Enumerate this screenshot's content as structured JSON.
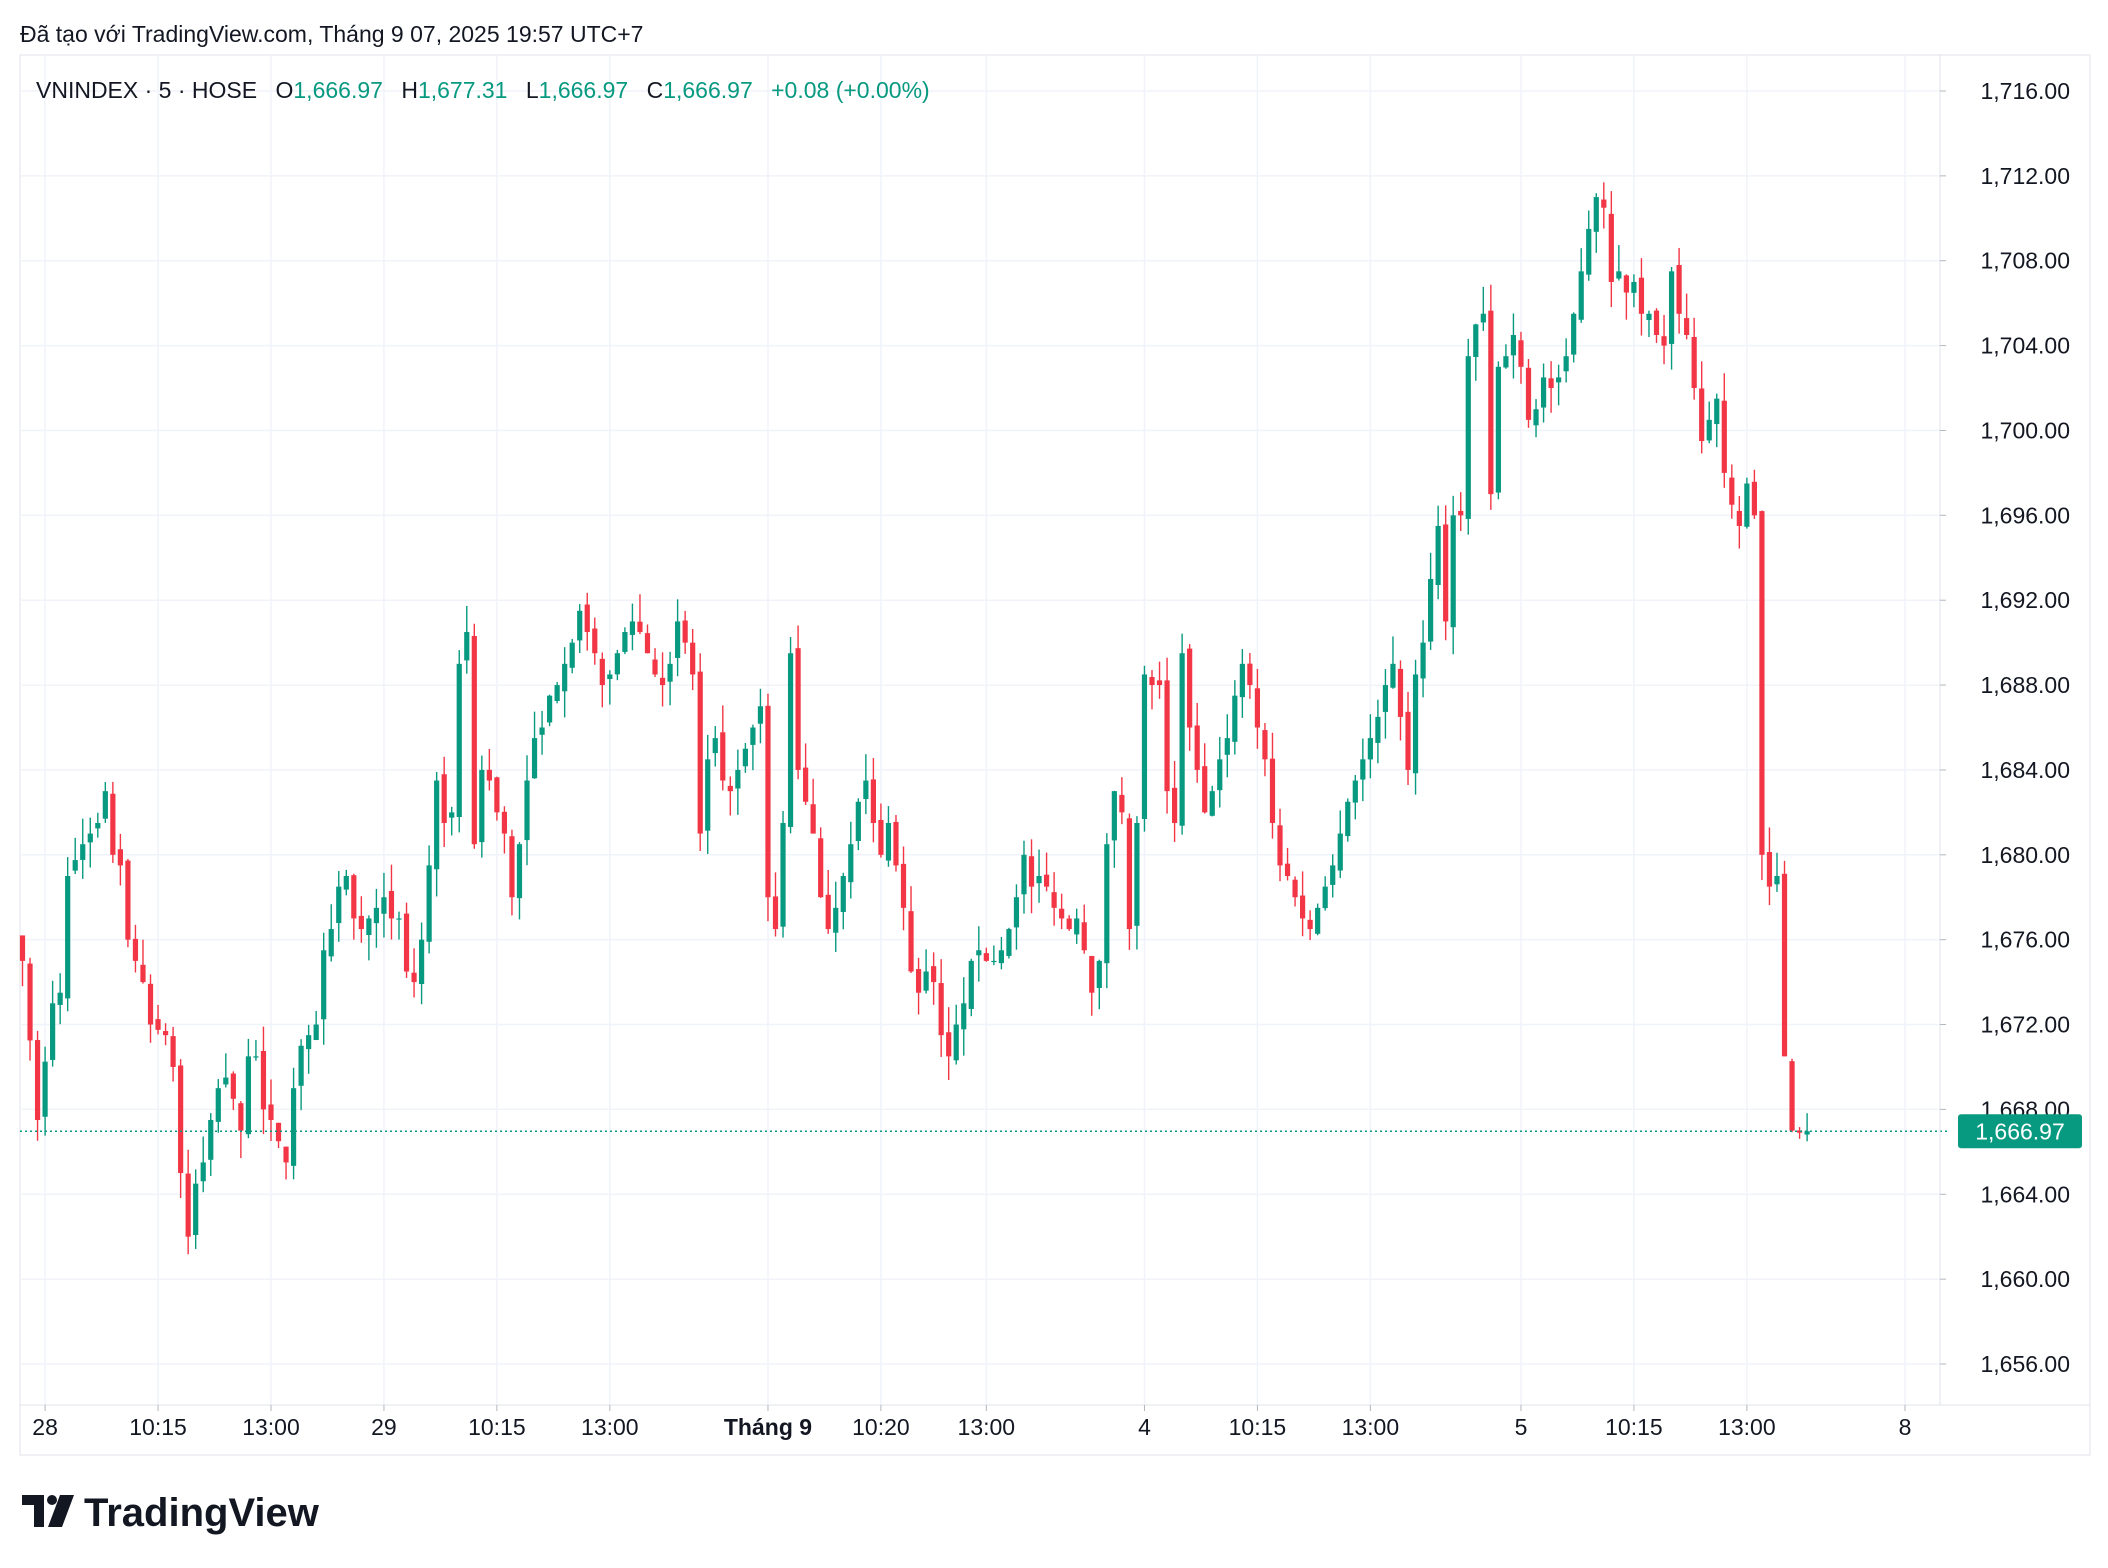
{
  "header": {
    "created_with": "Đã tạo với TradingView.com, Tháng 9 07, 2025 19:57 UTC+7"
  },
  "legend": {
    "symbol": "VNINDEX · 5 · HOSE",
    "o_label": "O",
    "o_value": "1,666.97",
    "h_label": "H",
    "h_value": "1,677.31",
    "l_label": "L",
    "l_value": "1,666.97",
    "c_label": "C",
    "c_value": "1,666.97",
    "change": "+0.08 (+0.00%)"
  },
  "branding": {
    "logo_text": "TradingView"
  },
  "colors": {
    "up": "#089981",
    "down": "#f23645",
    "grid": "#f0f3fa",
    "text": "#131722",
    "label_bg": "#089981"
  },
  "chart_data": {
    "type": "candlestick",
    "title": "VNINDEX · 5 · HOSE",
    "ylim": [
      1654,
      1718
    ],
    "y_ticks": [
      1716,
      1712,
      1708,
      1704,
      1700,
      1696,
      1692,
      1688,
      1684,
      1680,
      1676,
      1672,
      1668,
      1664,
      1660,
      1656
    ],
    "y_tick_labels": [
      "1,716.00",
      "1,712.00",
      "1,708.00",
      "1,704.00",
      "1,700.00",
      "1,696.00",
      "1,692.00",
      "1,688.00",
      "1,684.00",
      "1,680.00",
      "1,676.00",
      "1,672.00",
      "1,668.00",
      "1,664.00",
      "1,660.00",
      "1,656.00"
    ],
    "x_labels": [
      {
        "label": "28",
        "bar": 3,
        "bold": false
      },
      {
        "label": "10:15",
        "bar": 18,
        "bold": false
      },
      {
        "label": "13:00",
        "bar": 33,
        "bold": false
      },
      {
        "label": "29",
        "bar": 48,
        "bold": false
      },
      {
        "label": "10:15",
        "bar": 63,
        "bold": false
      },
      {
        "label": "13:00",
        "bar": 78,
        "bold": false
      },
      {
        "label": "Tháng 9",
        "bar": 99,
        "bold": true
      },
      {
        "label": "10:20",
        "bar": 114,
        "bold": false
      },
      {
        "label": "13:00",
        "bar": 128,
        "bold": false
      },
      {
        "label": "4",
        "bar": 149,
        "bold": false
      },
      {
        "label": "10:15",
        "bar": 164,
        "bold": false
      },
      {
        "label": "13:00",
        "bar": 179,
        "bold": false
      },
      {
        "label": "5",
        "bar": 199,
        "bold": false
      },
      {
        "label": "10:15",
        "bar": 214,
        "bold": false
      },
      {
        "label": "13:00",
        "bar": 229,
        "bold": false
      },
      {
        "label": "8",
        "bar": 250,
        "bold": false
      }
    ],
    "last_price": 1666.97,
    "last_price_label": "1,666.97",
    "anchors": [
      [
        0,
        1675.0
      ],
      [
        2,
        1667.5
      ],
      [
        4,
        1673.0
      ],
      [
        5,
        1673.5
      ],
      [
        6,
        1679.0
      ],
      [
        8,
        1680.5
      ],
      [
        10,
        1681.5
      ],
      [
        11,
        1683.0
      ],
      [
        12,
        1680.0
      ],
      [
        13,
        1679.5
      ],
      [
        14,
        1676.0
      ],
      [
        15,
        1675.0
      ],
      [
        16,
        1674.0
      ],
      [
        17,
        1672.0
      ],
      [
        19,
        1671.5
      ],
      [
        20,
        1670.0
      ],
      [
        21,
        1665.0
      ],
      [
        22,
        1662.0
      ],
      [
        23,
        1664.5
      ],
      [
        24,
        1665.5
      ],
      [
        25,
        1667.5
      ],
      [
        26,
        1669.0
      ],
      [
        27,
        1669.5
      ],
      [
        28,
        1668.5
      ],
      [
        29,
        1667.0
      ],
      [
        30,
        1670.5
      ],
      [
        31,
        1670.5
      ],
      [
        32,
        1668.0
      ],
      [
        33,
        1667.5
      ],
      [
        34,
        1666.5
      ],
      [
        35,
        1665.5
      ],
      [
        36,
        1669.0
      ],
      [
        37,
        1671.0
      ],
      [
        38,
        1671.5
      ],
      [
        39,
        1672.0
      ],
      [
        40,
        1675.5
      ],
      [
        41,
        1676.5
      ],
      [
        42,
        1678.5
      ],
      [
        43,
        1679.0
      ],
      [
        44,
        1677.0
      ],
      [
        45,
        1676.5
      ],
      [
        46,
        1677.0
      ],
      [
        47,
        1677.5
      ],
      [
        48,
        1678.0
      ],
      [
        49,
        1677.0
      ],
      [
        50,
        1677.0
      ],
      [
        51,
        1674.5
      ],
      [
        52,
        1674.0
      ],
      [
        53,
        1676.0
      ],
      [
        54,
        1679.5
      ],
      [
        55,
        1683.5
      ],
      [
        56,
        1681.5
      ],
      [
        57,
        1682.0
      ],
      [
        58,
        1689.0
      ],
      [
        59,
        1690.5
      ],
      [
        60,
        1680.5
      ],
      [
        61,
        1684.0
      ],
      [
        62,
        1683.5
      ],
      [
        63,
        1682.0
      ],
      [
        64,
        1681.0
      ],
      [
        65,
        1678.0
      ],
      [
        66,
        1680.5
      ],
      [
        67,
        1683.5
      ],
      [
        68,
        1685.5
      ],
      [
        69,
        1686.0
      ],
      [
        70,
        1687.5
      ],
      [
        71,
        1688.0
      ],
      [
        72,
        1689.0
      ],
      [
        73,
        1690.0
      ],
      [
        74,
        1691.5
      ],
      [
        75,
        1690.5
      ],
      [
        76,
        1689.5
      ],
      [
        77,
        1688.0
      ],
      [
        78,
        1688.5
      ],
      [
        79,
        1689.5
      ],
      [
        80,
        1690.5
      ],
      [
        81,
        1691.0
      ],
      [
        82,
        1690.5
      ],
      [
        83,
        1689.5
      ],
      [
        84,
        1688.5
      ],
      [
        85,
        1688.0
      ],
      [
        86,
        1689.0
      ],
      [
        87,
        1691.0
      ],
      [
        88,
        1690.0
      ],
      [
        89,
        1688.5
      ],
      [
        90,
        1681.0
      ],
      [
        91,
        1684.5
      ],
      [
        92,
        1685.5
      ],
      [
        93,
        1683.5
      ],
      [
        94,
        1683.0
      ],
      [
        95,
        1684.0
      ],
      [
        96,
        1685.0
      ],
      [
        97,
        1686.0
      ],
      [
        98,
        1687.0
      ],
      [
        99,
        1678.0
      ],
      [
        100,
        1676.5
      ],
      [
        101,
        1681.5
      ],
      [
        102,
        1689.5
      ],
      [
        103,
        1684.0
      ],
      [
        104,
        1682.5
      ],
      [
        105,
        1681.0
      ],
      [
        106,
        1678.0
      ],
      [
        107,
        1676.5
      ],
      [
        108,
        1677.5
      ],
      [
        109,
        1679.0
      ],
      [
        110,
        1680.5
      ],
      [
        111,
        1682.5
      ],
      [
        112,
        1683.5
      ],
      [
        113,
        1681.5
      ],
      [
        114,
        1680.0
      ],
      [
        115,
        1681.5
      ],
      [
        116,
        1679.5
      ],
      [
        117,
        1677.5
      ],
      [
        118,
        1674.5
      ],
      [
        119,
        1673.5
      ],
      [
        120,
        1674.5
      ],
      [
        121,
        1674.0
      ],
      [
        122,
        1671.5
      ],
      [
        123,
        1670.5
      ],
      [
        124,
        1672.0
      ],
      [
        125,
        1673.0
      ],
      [
        126,
        1675.0
      ],
      [
        127,
        1675.5
      ],
      [
        128,
        1675.0
      ],
      [
        129,
        1675.0
      ],
      [
        130,
        1675.5
      ],
      [
        131,
        1676.5
      ],
      [
        132,
        1678.0
      ],
      [
        133,
        1680.0
      ],
      [
        134,
        1678.5
      ],
      [
        135,
        1679.0
      ],
      [
        136,
        1678.5
      ],
      [
        137,
        1677.5
      ],
      [
        138,
        1677.0
      ],
      [
        139,
        1676.5
      ],
      [
        140,
        1677.0
      ],
      [
        141,
        1675.5
      ],
      [
        142,
        1673.5
      ],
      [
        143,
        1675.0
      ],
      [
        144,
        1680.5
      ],
      [
        145,
        1683.0
      ],
      [
        146,
        1682.0
      ],
      [
        147,
        1676.5
      ],
      [
        148,
        1681.5
      ],
      [
        149,
        1688.5
      ],
      [
        150,
        1688.0
      ],
      [
        151,
        1688.0
      ],
      [
        152,
        1683.0
      ],
      [
        153,
        1681.5
      ],
      [
        154,
        1689.5
      ],
      [
        155,
        1686.0
      ],
      [
        156,
        1684.0
      ],
      [
        157,
        1682.0
      ],
      [
        158,
        1683.0
      ],
      [
        159,
        1684.5
      ],
      [
        160,
        1685.5
      ],
      [
        161,
        1687.5
      ],
      [
        162,
        1689.0
      ],
      [
        163,
        1688.0
      ],
      [
        164,
        1686.0
      ],
      [
        165,
        1684.5
      ],
      [
        166,
        1681.5
      ],
      [
        167,
        1679.5
      ],
      [
        168,
        1679.0
      ],
      [
        169,
        1678.0
      ],
      [
        170,
        1677.0
      ],
      [
        171,
        1676.5
      ],
      [
        172,
        1677.5
      ],
      [
        173,
        1678.5
      ],
      [
        174,
        1679.5
      ],
      [
        175,
        1681.0
      ],
      [
        176,
        1682.5
      ],
      [
        177,
        1683.5
      ],
      [
        178,
        1684.5
      ],
      [
        179,
        1685.5
      ],
      [
        180,
        1686.5
      ],
      [
        181,
        1688.0
      ],
      [
        182,
        1689.0
      ],
      [
        183,
        1686.5
      ],
      [
        184,
        1684.0
      ],
      [
        185,
        1688.5
      ],
      [
        186,
        1690.0
      ],
      [
        187,
        1693.0
      ],
      [
        188,
        1695.5
      ],
      [
        189,
        1691.0
      ],
      [
        190,
        1696.0
      ],
      [
        191,
        1696.0
      ],
      [
        192,
        1703.5
      ],
      [
        193,
        1705.0
      ],
      [
        194,
        1705.5
      ],
      [
        195,
        1697.0
      ],
      [
        196,
        1703.0
      ],
      [
        197,
        1703.5
      ],
      [
        198,
        1704.5
      ],
      [
        199,
        1703.0
      ],
      [
        200,
        1700.5
      ],
      [
        201,
        1701.0
      ],
      [
        202,
        1702.5
      ],
      [
        203,
        1702.0
      ],
      [
        204,
        1702.5
      ],
      [
        205,
        1703.5
      ],
      [
        206,
        1705.5
      ],
      [
        207,
        1707.5
      ],
      [
        208,
        1709.5
      ],
      [
        209,
        1711.0
      ],
      [
        210,
        1710.5
      ],
      [
        211,
        1707.0
      ],
      [
        212,
        1707.5
      ],
      [
        213,
        1706.5
      ],
      [
        214,
        1707.0
      ],
      [
        215,
        1705.5
      ],
      [
        216,
        1705.5
      ],
      [
        217,
        1704.5
      ],
      [
        218,
        1704.0
      ],
      [
        219,
        1707.5
      ],
      [
        220,
        1705.5
      ],
      [
        221,
        1704.5
      ],
      [
        222,
        1702.0
      ],
      [
        223,
        1699.5
      ],
      [
        224,
        1700.5
      ],
      [
        225,
        1701.5
      ],
      [
        226,
        1698.0
      ],
      [
        227,
        1696.5
      ],
      [
        228,
        1695.5
      ],
      [
        229,
        1697.5
      ],
      [
        230,
        1696.0
      ],
      [
        231,
        1680.0
      ],
      [
        232,
        1678.5
      ],
      [
        233,
        1679.0
      ],
      [
        234,
        1670.5
      ],
      [
        235,
        1667.0
      ],
      [
        236,
        1666.9
      ],
      [
        237,
        1666.97
      ]
    ]
  }
}
